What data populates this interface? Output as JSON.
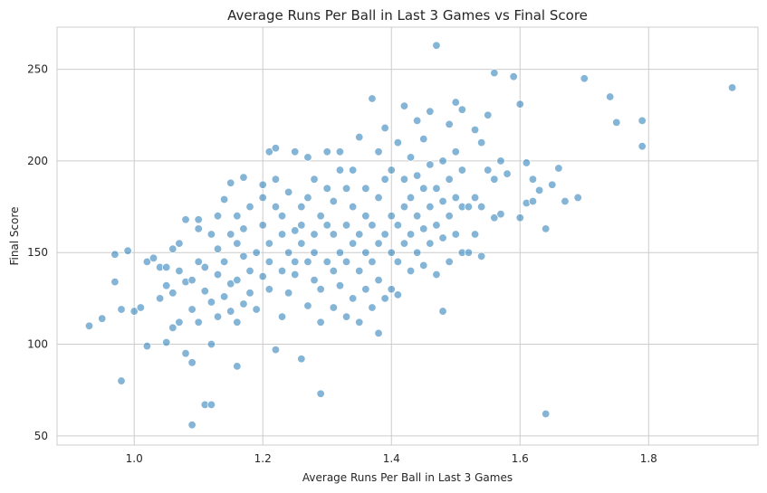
{
  "chart_data": {
    "type": "scatter",
    "title": "Average Runs Per Ball in Last 3 Games vs Final Score",
    "xlabel": "Average Runs Per Ball in Last 3 Games",
    "ylabel": "Final Score",
    "xlim": [
      0.88,
      1.97
    ],
    "ylim": [
      45,
      273
    ],
    "xticks": [
      1.0,
      1.2,
      1.4,
      1.6,
      1.8
    ],
    "xtick_labels": [
      "1.0",
      "1.2",
      "1.4",
      "1.6",
      "1.8"
    ],
    "yticks": [
      50,
      100,
      150,
      200,
      250
    ],
    "ytick_labels": [
      "50",
      "100",
      "150",
      "200",
      "250"
    ],
    "grid": true,
    "legend": "none",
    "point_color": "#1f77b4",
    "points": [
      [
        0.93,
        110
      ],
      [
        0.95,
        114
      ],
      [
        0.97,
        149
      ],
      [
        0.97,
        134
      ],
      [
        0.98,
        80
      ],
      [
        0.98,
        119
      ],
      [
        0.99,
        151
      ],
      [
        1.0,
        118
      ],
      [
        1.01,
        120
      ],
      [
        1.02,
        99
      ],
      [
        1.02,
        145
      ],
      [
        1.03,
        147
      ],
      [
        1.04,
        125
      ],
      [
        1.04,
        142
      ],
      [
        1.05,
        101
      ],
      [
        1.05,
        142
      ],
      [
        1.05,
        132
      ],
      [
        1.06,
        109
      ],
      [
        1.06,
        152
      ],
      [
        1.06,
        128
      ],
      [
        1.07,
        155
      ],
      [
        1.07,
        112
      ],
      [
        1.07,
        140
      ],
      [
        1.08,
        134
      ],
      [
        1.08,
        95
      ],
      [
        1.08,
        168
      ],
      [
        1.09,
        56
      ],
      [
        1.09,
        119
      ],
      [
        1.09,
        90
      ],
      [
        1.09,
        135
      ],
      [
        1.1,
        145
      ],
      [
        1.1,
        168
      ],
      [
        1.1,
        163
      ],
      [
        1.1,
        112
      ],
      [
        1.11,
        67
      ],
      [
        1.11,
        129
      ],
      [
        1.11,
        142
      ],
      [
        1.12,
        100
      ],
      [
        1.12,
        67
      ],
      [
        1.12,
        123
      ],
      [
        1.12,
        160
      ],
      [
        1.13,
        115
      ],
      [
        1.13,
        138
      ],
      [
        1.13,
        152
      ],
      [
        1.13,
        170
      ],
      [
        1.14,
        126
      ],
      [
        1.14,
        179
      ],
      [
        1.14,
        145
      ],
      [
        1.15,
        118
      ],
      [
        1.15,
        133
      ],
      [
        1.15,
        160
      ],
      [
        1.15,
        188
      ],
      [
        1.16,
        88
      ],
      [
        1.16,
        112
      ],
      [
        1.16,
        135
      ],
      [
        1.16,
        155
      ],
      [
        1.16,
        170
      ],
      [
        1.17,
        122
      ],
      [
        1.17,
        148
      ],
      [
        1.17,
        163
      ],
      [
        1.17,
        191
      ],
      [
        1.18,
        140
      ],
      [
        1.18,
        128
      ],
      [
        1.18,
        175
      ],
      [
        1.19,
        119
      ],
      [
        1.19,
        150
      ],
      [
        1.2,
        137
      ],
      [
        1.2,
        165
      ],
      [
        1.2,
        187
      ],
      [
        1.2,
        180
      ],
      [
        1.21,
        205
      ],
      [
        1.21,
        145
      ],
      [
        1.21,
        130
      ],
      [
        1.21,
        155
      ],
      [
        1.22,
        97
      ],
      [
        1.22,
        175
      ],
      [
        1.22,
        207
      ],
      [
        1.22,
        190
      ],
      [
        1.23,
        115
      ],
      [
        1.23,
        140
      ],
      [
        1.23,
        160
      ],
      [
        1.23,
        170
      ],
      [
        1.24,
        128
      ],
      [
        1.24,
        150
      ],
      [
        1.24,
        183
      ],
      [
        1.25,
        205
      ],
      [
        1.25,
        162
      ],
      [
        1.25,
        145
      ],
      [
        1.25,
        138
      ],
      [
        1.26,
        92
      ],
      [
        1.26,
        175
      ],
      [
        1.26,
        155
      ],
      [
        1.26,
        165
      ],
      [
        1.27,
        121
      ],
      [
        1.27,
        145
      ],
      [
        1.27,
        180
      ],
      [
        1.27,
        202
      ],
      [
        1.28,
        160
      ],
      [
        1.28,
        135
      ],
      [
        1.28,
        150
      ],
      [
        1.28,
        190
      ],
      [
        1.29,
        73
      ],
      [
        1.29,
        112
      ],
      [
        1.29,
        130
      ],
      [
        1.29,
        170
      ],
      [
        1.3,
        145
      ],
      [
        1.3,
        165
      ],
      [
        1.3,
        185
      ],
      [
        1.3,
        205
      ],
      [
        1.31,
        120
      ],
      [
        1.31,
        140
      ],
      [
        1.31,
        160
      ],
      [
        1.31,
        178
      ],
      [
        1.32,
        132
      ],
      [
        1.32,
        150
      ],
      [
        1.32,
        195
      ],
      [
        1.32,
        205
      ],
      [
        1.33,
        115
      ],
      [
        1.33,
        145
      ],
      [
        1.33,
        165
      ],
      [
        1.33,
        185
      ],
      [
        1.34,
        125
      ],
      [
        1.34,
        155
      ],
      [
        1.34,
        175
      ],
      [
        1.34,
        195
      ],
      [
        1.35,
        112
      ],
      [
        1.35,
        140
      ],
      [
        1.35,
        160
      ],
      [
        1.35,
        213
      ],
      [
        1.36,
        130
      ],
      [
        1.36,
        150
      ],
      [
        1.36,
        170
      ],
      [
        1.36,
        185
      ],
      [
        1.37,
        234
      ],
      [
        1.37,
        120
      ],
      [
        1.37,
        145
      ],
      [
        1.37,
        165
      ],
      [
        1.38,
        106
      ],
      [
        1.38,
        135
      ],
      [
        1.38,
        155
      ],
      [
        1.38,
        180
      ],
      [
        1.38,
        205
      ],
      [
        1.39,
        125
      ],
      [
        1.39,
        160
      ],
      [
        1.39,
        190
      ],
      [
        1.39,
        218
      ],
      [
        1.4,
        130
      ],
      [
        1.4,
        150
      ],
      [
        1.4,
        170
      ],
      [
        1.4,
        195
      ],
      [
        1.41,
        127
      ],
      [
        1.41,
        145
      ],
      [
        1.41,
        165
      ],
      [
        1.41,
        210
      ],
      [
        1.42,
        155
      ],
      [
        1.42,
        175
      ],
      [
        1.42,
        190
      ],
      [
        1.42,
        230
      ],
      [
        1.43,
        140
      ],
      [
        1.43,
        160
      ],
      [
        1.43,
        180
      ],
      [
        1.43,
        202
      ],
      [
        1.44,
        150
      ],
      [
        1.44,
        170
      ],
      [
        1.44,
        192
      ],
      [
        1.44,
        222
      ],
      [
        1.45,
        143
      ],
      [
        1.45,
        163
      ],
      [
        1.45,
        185
      ],
      [
        1.45,
        212
      ],
      [
        1.46,
        155
      ],
      [
        1.46,
        175
      ],
      [
        1.46,
        198
      ],
      [
        1.46,
        227
      ],
      [
        1.47,
        138
      ],
      [
        1.47,
        165
      ],
      [
        1.47,
        185
      ],
      [
        1.47,
        263
      ],
      [
        1.48,
        118
      ],
      [
        1.48,
        158
      ],
      [
        1.48,
        178
      ],
      [
        1.48,
        200
      ],
      [
        1.49,
        145
      ],
      [
        1.49,
        170
      ],
      [
        1.49,
        190
      ],
      [
        1.49,
        220
      ],
      [
        1.5,
        160
      ],
      [
        1.5,
        180
      ],
      [
        1.5,
        205
      ],
      [
        1.5,
        232
      ],
      [
        1.51,
        150
      ],
      [
        1.51,
        175
      ],
      [
        1.51,
        195
      ],
      [
        1.51,
        228
      ],
      [
        1.52,
        150
      ],
      [
        1.52,
        175
      ],
      [
        1.53,
        160
      ],
      [
        1.53,
        180
      ],
      [
        1.53,
        217
      ],
      [
        1.54,
        148
      ],
      [
        1.54,
        175
      ],
      [
        1.54,
        210
      ],
      [
        1.55,
        195
      ],
      [
        1.55,
        225
      ],
      [
        1.56,
        169
      ],
      [
        1.56,
        190
      ],
      [
        1.56,
        248
      ],
      [
        1.57,
        171
      ],
      [
        1.57,
        200
      ],
      [
        1.58,
        193
      ],
      [
        1.59,
        246
      ],
      [
        1.6,
        169
      ],
      [
        1.6,
        231
      ],
      [
        1.61,
        177
      ],
      [
        1.61,
        199
      ],
      [
        1.62,
        178
      ],
      [
        1.62,
        190
      ],
      [
        1.63,
        184
      ],
      [
        1.64,
        163
      ],
      [
        1.64,
        62
      ],
      [
        1.65,
        187
      ],
      [
        1.66,
        196
      ],
      [
        1.67,
        178
      ],
      [
        1.69,
        180
      ],
      [
        1.7,
        245
      ],
      [
        1.74,
        235
      ],
      [
        1.75,
        221
      ],
      [
        1.79,
        222
      ],
      [
        1.79,
        208
      ],
      [
        1.93,
        240
      ]
    ]
  }
}
